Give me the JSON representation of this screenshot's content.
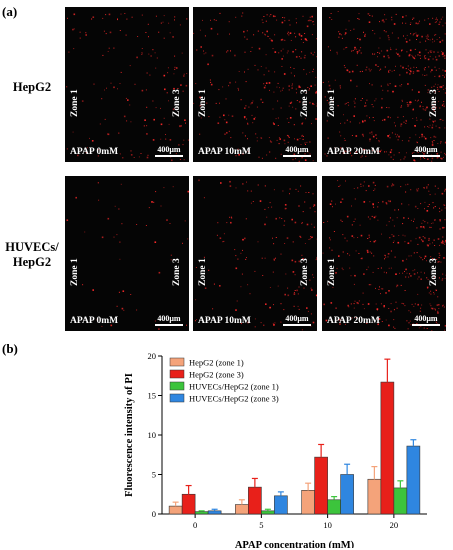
{
  "panel_a_label": "(a)",
  "panel_b_label": "(b)",
  "rows": [
    {
      "label_lines": [
        "HepG2"
      ],
      "images": [
        {
          "zone_left": "Zone 1",
          "zone_right": "Zone 3",
          "condition": "APAP 0mM",
          "scale": "400μm",
          "density": 0.25
        },
        {
          "zone_left": "Zone 1",
          "zone_right": "Zone 3",
          "condition": "APAP 10mM",
          "scale": "400μm",
          "density": 0.6
        },
        {
          "zone_left": "Zone 1",
          "zone_right": "Zone 3",
          "condition": "APAP 20mM",
          "scale": "400μm",
          "density": 1.0
        }
      ]
    },
    {
      "label_lines": [
        "HUVECs/",
        "HepG2"
      ],
      "images": [
        {
          "zone_left": "Zone 1",
          "zone_right": "Zone 3",
          "condition": "APAP 0mM",
          "scale": "400μm",
          "density": 0.05
        },
        {
          "zone_left": "Zone 1",
          "zone_right": "Zone 3",
          "condition": "APAP 10mM",
          "scale": "400μm",
          "density": 0.3
        },
        {
          "zone_left": "Zone 1",
          "zone_right": "Zone 3",
          "condition": "APAP 20mM",
          "scale": "400μm",
          "density": 0.75
        }
      ]
    }
  ],
  "colors": {
    "red_speck": "#ff2a2a"
  },
  "chart_data": {
    "type": "bar",
    "xlabel": "APAP concentration (mM)",
    "ylabel": "Fluorescence intensity of PI",
    "categories": [
      "0",
      "5",
      "10",
      "20"
    ],
    "ylim": [
      0,
      20
    ],
    "yticks": [
      0,
      5,
      10,
      15,
      20
    ],
    "legend_position": "top-left",
    "error_bars": true,
    "series": [
      {
        "name": "HepG2 (zone 1)",
        "color": "#f4a37a",
        "values": [
          1.0,
          1.2,
          3.0,
          4.4
        ],
        "errors": [
          0.5,
          0.6,
          0.9,
          1.6
        ]
      },
      {
        "name": "HepG2 (zone 3)",
        "color": "#e8201a",
        "values": [
          2.5,
          3.4,
          7.2,
          16.7
        ],
        "errors": [
          1.1,
          1.1,
          1.6,
          2.9
        ]
      },
      {
        "name": "HUVECs/HepG2 (zone 1)",
        "color": "#3cc43c",
        "values": [
          0.3,
          0.4,
          1.8,
          3.3
        ],
        "errors": [
          0.1,
          0.2,
          0.4,
          0.9
        ]
      },
      {
        "name": "HUVECs/HepG2 (zone 3)",
        "color": "#2f86e0",
        "values": [
          0.4,
          2.3,
          5.0,
          8.6
        ],
        "errors": [
          0.2,
          0.5,
          1.3,
          0.8
        ]
      }
    ]
  }
}
